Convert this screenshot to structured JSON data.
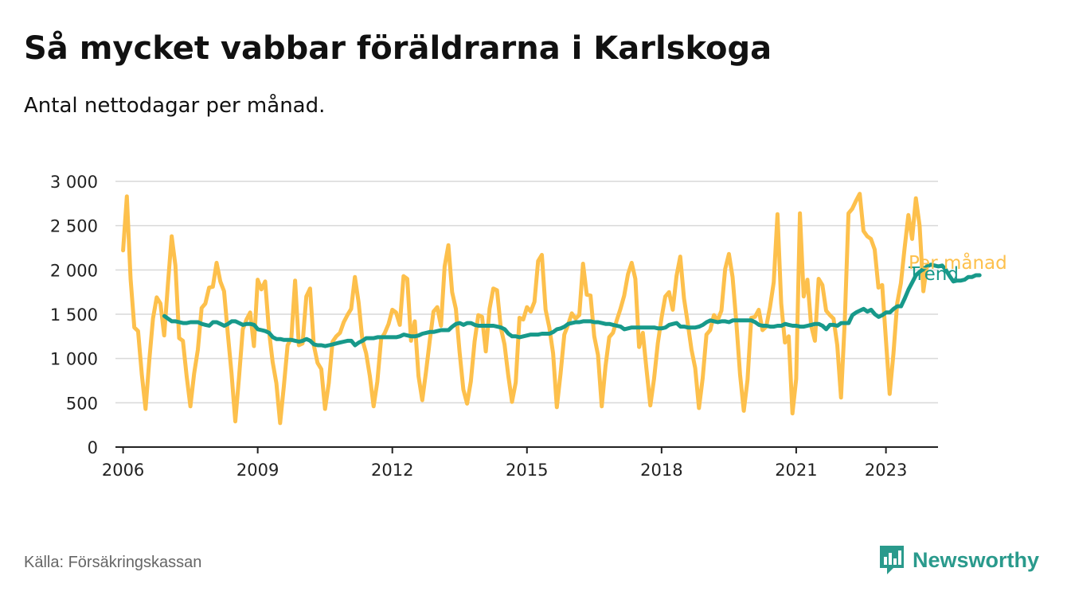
{
  "title": "Så mycket vabbar föräldrarna i Karlskoga",
  "subtitle": "Antal nettodagar per månad.",
  "source": "Källa: Försäkringskassan",
  "brand": {
    "name": "Newsworthy",
    "icon": "bar-chart-logo-icon"
  },
  "colors": {
    "monthly": "#fdc04c",
    "trend": "#17998a",
    "grid": "#d9d9d9",
    "axis": "#222222",
    "brand": "#2a9a8c"
  },
  "chart_data": {
    "type": "line",
    "title": "Så mycket vabbar föräldrarna i Karlskoga",
    "xlabel": "",
    "ylabel": "",
    "xlim": [
      2005.83,
      2024.16
    ],
    "ylim": [
      0,
      3000
    ],
    "y_ticks": [
      0,
      500,
      1000,
      1500,
      2000,
      2500,
      3000
    ],
    "y_tick_labels": [
      "0",
      "500",
      "1 000",
      "1 500",
      "2 000",
      "2 500",
      "3 000"
    ],
    "x_ticks": [
      2006,
      2009,
      2012,
      2015,
      2018,
      2021,
      2023
    ],
    "x_tick_labels": [
      "2006",
      "2009",
      "2012",
      "2015",
      "2018",
      "2021",
      "2023"
    ],
    "grid": true,
    "legend_placement": "inline-right",
    "series": [
      {
        "name": "Per månad",
        "color": "#fdc04c",
        "x_start": 2006.0,
        "x_step": 0.08333,
        "values": [
          2220,
          2830,
          1900,
          1350,
          1310,
          820,
          430,
          980,
          1450,
          1690,
          1620,
          1260,
          1840,
          2380,
          2050,
          1230,
          1200,
          800,
          460,
          830,
          1100,
          1570,
          1620,
          1800,
          1810,
          2080,
          1870,
          1760,
          1280,
          830,
          290,
          790,
          1330,
          1440,
          1520,
          1140,
          1890,
          1780,
          1870,
          1320,
          960,
          720,
          270,
          690,
          1150,
          1230,
          1880,
          1150,
          1170,
          1700,
          1790,
          1150,
          950,
          880,
          430,
          720,
          1190,
          1250,
          1290,
          1410,
          1490,
          1560,
          1920,
          1630,
          1210,
          1060,
          800,
          460,
          740,
          1220,
          1290,
          1390,
          1550,
          1520,
          1380,
          1930,
          1900,
          1200,
          1420,
          800,
          530,
          850,
          1200,
          1530,
          1580,
          1370,
          2040,
          2280,
          1750,
          1560,
          1070,
          650,
          490,
          740,
          1190,
          1490,
          1470,
          1080,
          1560,
          1790,
          1770,
          1350,
          1160,
          810,
          510,
          730,
          1460,
          1440,
          1580,
          1530,
          1640,
          2100,
          2170,
          1550,
          1350,
          1060,
          450,
          830,
          1270,
          1380,
          1510,
          1450,
          1490,
          2070,
          1720,
          1710,
          1250,
          1040,
          460,
          910,
          1240,
          1290,
          1430,
          1560,
          1710,
          1950,
          2080,
          1900,
          1130,
          1290,
          870,
          470,
          770,
          1170,
          1460,
          1700,
          1750,
          1550,
          1930,
          2150,
          1680,
          1400,
          1100,
          890,
          440,
          780,
          1270,
          1320,
          1490,
          1430,
          1540,
          2010,
          2180,
          1920,
          1410,
          820,
          410,
          760,
          1460,
          1470,
          1550,
          1320,
          1360,
          1580,
          1860,
          2630,
          1620,
          1180,
          1250,
          380,
          770,
          2640,
          1700,
          1890,
          1370,
          1200,
          1900,
          1830,
          1540,
          1490,
          1450,
          1150,
          560,
          1420,
          2640,
          2690,
          2780,
          2860,
          2440,
          2380,
          2350,
          2230,
          1800,
          1830,
          1210,
          600,
          1050,
          1620,
          1850,
          2250,
          2620,
          2350,
          2810,
          2500,
          1760,
          2060
        ]
      },
      {
        "name": "Trend",
        "color": "#17998a",
        "x_start": 2006.92,
        "x_step": 0.08333,
        "values": [
          1480,
          1450,
          1420,
          1420,
          1410,
          1400,
          1400,
          1410,
          1410,
          1410,
          1390,
          1380,
          1370,
          1410,
          1410,
          1390,
          1370,
          1390,
          1420,
          1420,
          1400,
          1380,
          1390,
          1390,
          1380,
          1330,
          1320,
          1310,
          1290,
          1240,
          1220,
          1220,
          1210,
          1210,
          1210,
          1200,
          1190,
          1200,
          1220,
          1200,
          1160,
          1150,
          1150,
          1140,
          1150,
          1160,
          1170,
          1180,
          1190,
          1200,
          1200,
          1150,
          1180,
          1200,
          1230,
          1230,
          1230,
          1240,
          1240,
          1240,
          1240,
          1240,
          1240,
          1250,
          1270,
          1260,
          1250,
          1250,
          1260,
          1280,
          1290,
          1300,
          1300,
          1310,
          1320,
          1320,
          1320,
          1360,
          1390,
          1400,
          1380,
          1400,
          1400,
          1380,
          1370,
          1370,
          1370,
          1370,
          1370,
          1360,
          1350,
          1330,
          1280,
          1250,
          1250,
          1240,
          1250,
          1260,
          1270,
          1270,
          1270,
          1280,
          1280,
          1280,
          1300,
          1330,
          1340,
          1360,
          1390,
          1400,
          1410,
          1410,
          1420,
          1420,
          1420,
          1410,
          1410,
          1400,
          1390,
          1390,
          1380,
          1370,
          1360,
          1330,
          1340,
          1350,
          1350,
          1350,
          1350,
          1350,
          1350,
          1350,
          1340,
          1340,
          1350,
          1380,
          1390,
          1400,
          1360,
          1360,
          1350,
          1350,
          1350,
          1360,
          1380,
          1410,
          1430,
          1420,
          1410,
          1420,
          1420,
          1410,
          1430,
          1430,
          1430,
          1430,
          1430,
          1430,
          1410,
          1380,
          1370,
          1370,
          1360,
          1360,
          1370,
          1370,
          1390,
          1380,
          1370,
          1370,
          1360,
          1360,
          1370,
          1380,
          1390,
          1390,
          1370,
          1330,
          1380,
          1380,
          1370,
          1400,
          1400,
          1400,
          1490,
          1520,
          1540,
          1560,
          1530,
          1550,
          1500,
          1470,
          1490,
          1520,
          1520,
          1560,
          1590,
          1590,
          1680,
          1780,
          1860,
          1940,
          1980,
          2010,
          2040,
          2060,
          2050,
          2040,
          2050,
          2000,
          1930,
          1870,
          1880,
          1880,
          1890,
          1920,
          1920,
          1940,
          1940
        ]
      }
    ]
  }
}
